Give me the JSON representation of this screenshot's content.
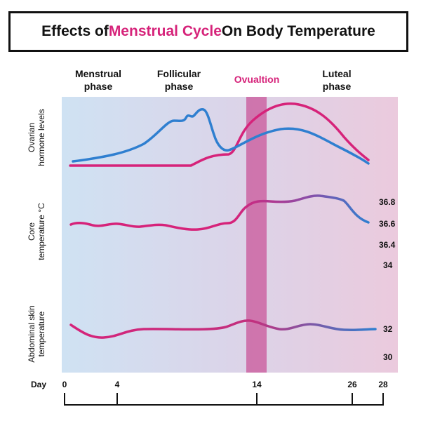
{
  "title": {
    "part1": "Effects of ",
    "highlight": "Menstrual Cycle",
    "part2": " On Body Temperature"
  },
  "phases": {
    "menstrual": [
      "Menstrual",
      "phase"
    ],
    "follicular": [
      "Follicular",
      "phase"
    ],
    "ovulation": "Ovualtion",
    "luteal": [
      "Luteal",
      "phase"
    ]
  },
  "row_labels": {
    "ovarian": [
      "Ovarian",
      "hormone levels"
    ],
    "core": [
      "Core",
      "temperature °C"
    ],
    "abdominal": [
      "Abdominal skin",
      "temperature"
    ]
  },
  "right_labels": {
    "core": [
      "36.8",
      "36.6",
      "36.4",
      "34"
    ],
    "skin": [
      "32",
      "30"
    ]
  },
  "x_axis": {
    "label": "Day",
    "ticks": [
      "0",
      "4",
      "14",
      "26",
      "28"
    ]
  },
  "colors": {
    "pink": "#d6237a",
    "blue": "#2f7fd0",
    "ovulation_band": "#c9559a"
  }
}
